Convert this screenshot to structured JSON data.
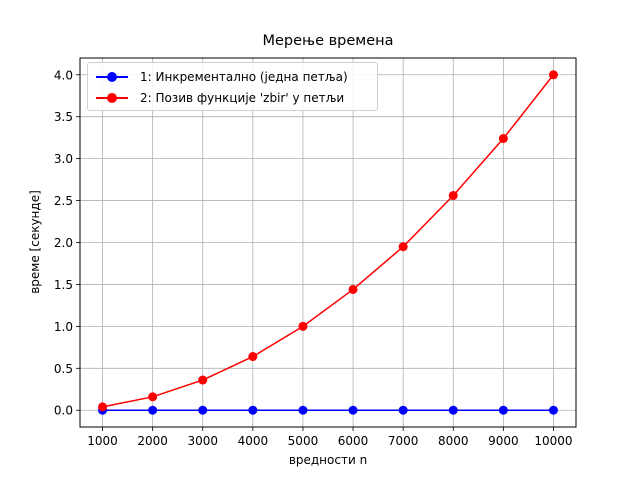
{
  "chart_data": {
    "type": "line",
    "title": "Мерење времена",
    "xlabel": "вредности n",
    "ylabel": "време [секунде]",
    "x": [
      1000,
      2000,
      3000,
      4000,
      5000,
      6000,
      7000,
      8000,
      9000,
      10000
    ],
    "series": [
      {
        "name": "1: Инкрементално (једна петља)",
        "color": "#0000ff",
        "marker": "circle",
        "values": [
          0.0,
          0.0,
          0.0,
          0.0,
          0.0,
          0.0,
          0.0,
          0.0,
          0.0,
          0.0
        ]
      },
      {
        "name": "2: Позив функције 'zbir' у петљи",
        "color": "#ff0000",
        "marker": "circle",
        "values": [
          0.04,
          0.16,
          0.36,
          0.64,
          1.0,
          1.44,
          1.95,
          2.56,
          3.24,
          4.0
        ]
      }
    ],
    "xticks": [
      "1000",
      "2000",
      "3000",
      "4000",
      "5000",
      "6000",
      "7000",
      "8000",
      "9000",
      "10000"
    ],
    "yticks": [
      "0.0",
      "0.5",
      "1.0",
      "1.5",
      "2.0",
      "2.5",
      "3.0",
      "3.5",
      "4.0"
    ],
    "xlim": [
      550,
      10450
    ],
    "ylim": [
      -0.2,
      4.2
    ],
    "grid": true,
    "legend_position": "upper left"
  }
}
